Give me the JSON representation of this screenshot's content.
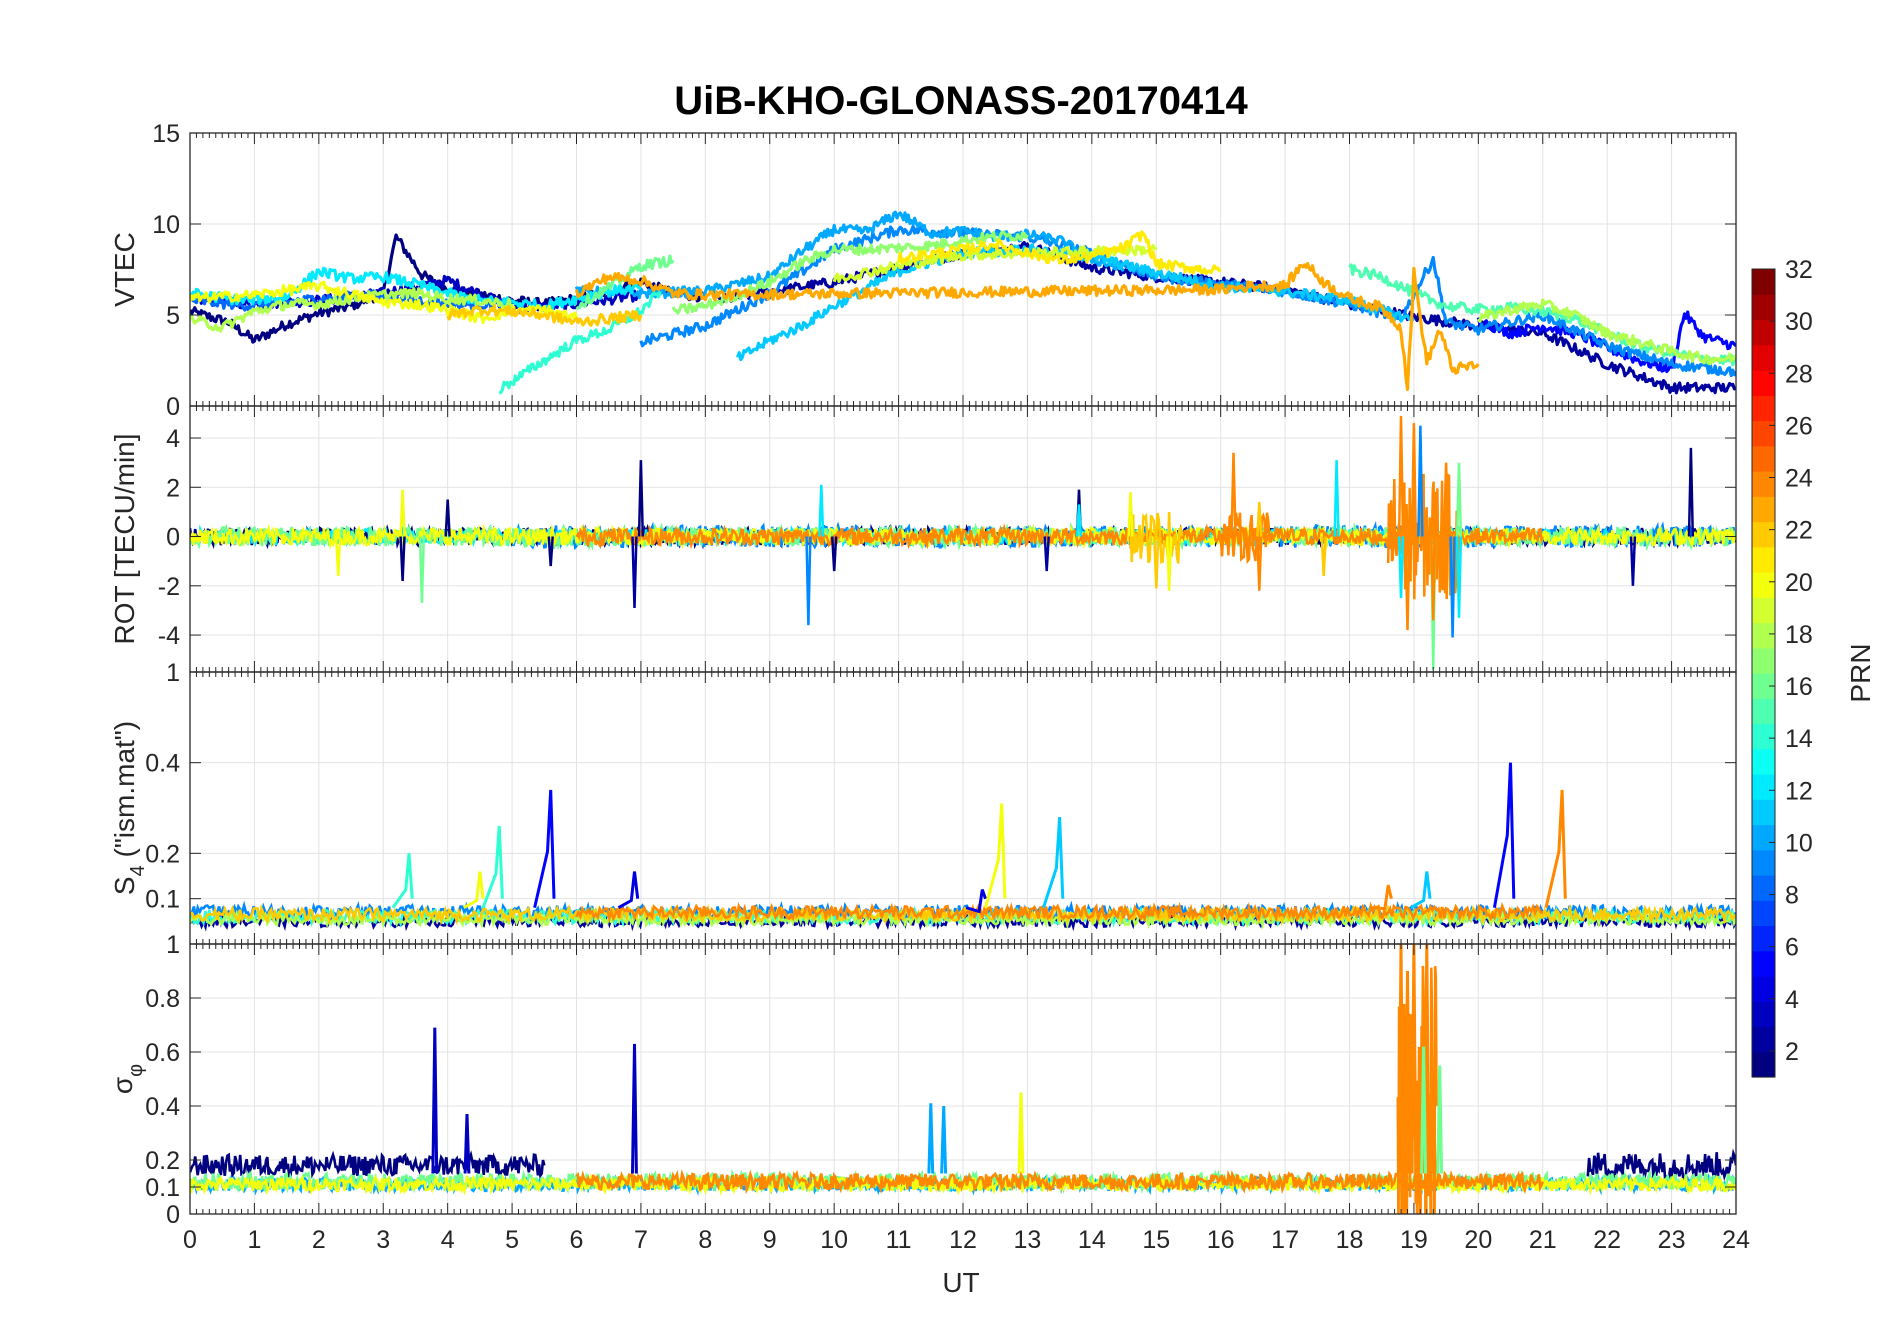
{
  "chart_data": {
    "type": "line",
    "title": "UiB-KHO-GLONASS-20170414",
    "xlabel": "UT",
    "xlim": [
      0,
      24
    ],
    "x_ticks": [
      "0",
      "1",
      "2",
      "3",
      "4",
      "5",
      "6",
      "7",
      "8",
      "9",
      "10",
      "11",
      "12",
      "13",
      "14",
      "15",
      "16",
      "17",
      "18",
      "19",
      "20",
      "21",
      "22",
      "23",
      "24"
    ],
    "colorbar": {
      "label": "PRN",
      "range": [
        1,
        32
      ],
      "ticks": [
        "2",
        "4",
        "6",
        "8",
        "10",
        "12",
        "14",
        "16",
        "18",
        "20",
        "22",
        "24",
        "26",
        "28",
        "30",
        "32"
      ],
      "colormap": "jet"
    },
    "panels": [
      {
        "key": "vtec",
        "ylabel": "VTEC",
        "ylim": [
          0,
          15
        ],
        "y_ticks": [
          "0",
          "5",
          "10",
          "15"
        ],
        "series": [
          {
            "prn": 1,
            "x": [
              0,
              0.6,
              1,
              1.5,
              2,
              2.5,
              3,
              3.2,
              3.6,
              4,
              4.5,
              5,
              5.5,
              6,
              6.5,
              7,
              7.5,
              8
            ],
            "y": [
              5.2,
              4.6,
              3.6,
              4.5,
              5.1,
              5.5,
              6.2,
              9.3,
              7.2,
              6.4,
              6.1,
              5.8,
              5.6,
              5.9,
              6.3,
              6.8,
              6.2,
              6.0
            ]
          },
          {
            "prn": 3,
            "x": [
              0,
              1,
              2,
              3,
              4,
              5,
              6,
              7
            ],
            "y": [
              5.9,
              5.6,
              5.8,
              6.2,
              6.9,
              5.4,
              5.6,
              6.1
            ]
          },
          {
            "prn": 2,
            "x": [
              8.2,
              9,
              10,
              11,
              12,
              13,
              14,
              15,
              16,
              17,
              18,
              19,
              20,
              21,
              22,
              23,
              24
            ],
            "y": [
              5.8,
              6.3,
              6.8,
              7.6,
              8.4,
              8.8,
              7.6,
              7.1,
              6.8,
              6.4,
              5.6,
              4.9,
              4.4,
              4.0,
              2.3,
              1.0,
              1.0
            ]
          },
          {
            "prn": 5,
            "x": [
              20,
              20.5,
              21,
              21.5,
              22,
              22.5,
              23,
              23.2,
              23.5,
              24
            ],
            "y": [
              4.7,
              4.0,
              4.4,
              4.0,
              3.2,
              2.5,
              2.0,
              5.1,
              3.8,
              3.3
            ]
          },
          {
            "prn": 8,
            "x": [
              0,
              1,
              2,
              3,
              4,
              5
            ],
            "y": [
              5.8,
              5.5,
              5.9,
              6.1,
              5.6,
              5.6
            ]
          },
          {
            "prn": 9,
            "x": [
              7,
              8,
              9,
              10,
              11,
              12,
              13,
              14,
              15,
              16,
              17,
              18,
              18.8,
              19.3,
              19.5,
              20,
              21,
              22,
              23,
              24
            ],
            "y": [
              3.5,
              4.4,
              6.2,
              8.6,
              9.7,
              9.5,
              9.3,
              8.4,
              7.1,
              6.7,
              6.3,
              5.6,
              4.8,
              8.1,
              4.6,
              4.2,
              5.0,
              3.3,
              2.3,
              1.9
            ]
          },
          {
            "prn": 10,
            "x": [
              6,
              7,
              8,
              9,
              9.5,
              10,
              10.5,
              11,
              11.5,
              12,
              12.5,
              13,
              13.5,
              14,
              14.5
            ],
            "y": [
              6.3,
              6.2,
              6.3,
              7.1,
              8.5,
              9.7,
              9.6,
              10.6,
              9.5,
              9.6,
              9.3,
              9.4,
              9.1,
              8.1,
              7.5
            ]
          },
          {
            "prn": 12,
            "x": [
              0,
              0.8,
              1.5,
              2,
              2.5,
              3,
              3.5,
              4,
              4.5,
              5,
              5.5,
              6,
              6.5,
              7
            ],
            "y": [
              6.2,
              5.8,
              6.0,
              7.4,
              7.0,
              7.1,
              6.7,
              6.2,
              5.8,
              5.7,
              5.5,
              5.9,
              6.3,
              6.5
            ]
          },
          {
            "prn": 11,
            "x": [
              8.5,
              9,
              9.5,
              10,
              11,
              12,
              13,
              14,
              15,
              16,
              17,
              18,
              19
            ],
            "y": [
              2.6,
              3.6,
              4.4,
              5.5,
              7.4,
              8.4,
              8.6,
              8.2,
              7.3,
              6.6,
              6.3,
              5.8,
              4.7
            ]
          },
          {
            "prn": 14,
            "x": [
              4.8,
              5.5,
              6,
              6.5,
              7,
              7.3
            ],
            "y": [
              0.9,
              2.5,
              3.6,
              4.2,
              5.2,
              6.3
            ]
          },
          {
            "prn": 15,
            "x": [
              18,
              18.5,
              19,
              19.5,
              20,
              20.5,
              21,
              21.5,
              22,
              22.5,
              23,
              23.5,
              24
            ],
            "y": [
              7.5,
              7.1,
              6.2,
              5.5,
              5.3,
              5.4,
              5.2,
              4.8,
              4.0,
              3.3,
              2.9,
              2.6,
              2.5
            ]
          },
          {
            "prn": 17,
            "x": [
              7.5,
              8,
              8.5,
              9,
              9.5,
              10,
              10.5,
              11,
              11.5,
              12,
              12.5,
              13
            ],
            "y": [
              5.2,
              5.5,
              6.1,
              6.8,
              7.9,
              8.6,
              8.6,
              8.7,
              8.8,
              9.1,
              9.3,
              9.4
            ]
          },
          {
            "prn": 16,
            "x": [
              6,
              6.5,
              7,
              7.3,
              7.5
            ],
            "y": [
              5.5,
              6.5,
              7.7,
              7.9,
              8.0
            ]
          },
          {
            "prn": 18,
            "x": [
              0,
              0.5,
              1,
              1.5,
              2,
              2.5,
              3,
              3.5,
              4,
              4.5,
              5
            ],
            "y": [
              4.8,
              4.3,
              5.2,
              5.6,
              5.6,
              5.9,
              6.1,
              6.2,
              5.9,
              5.8,
              5.6
            ]
          },
          {
            "prn": 18,
            "x": [
              20,
              20.5,
              21,
              21.5,
              22,
              22.5,
              23,
              23.5,
              24
            ],
            "y": [
              4.8,
              5.3,
              5.6,
              5.0,
              4.0,
              3.5,
              3.0,
              2.6,
              2.6
            ]
          },
          {
            "prn": 19,
            "x": [
              10,
              11,
              12,
              13,
              14,
              15
            ],
            "y": [
              7.0,
              7.7,
              8.3,
              8.4,
              8.5,
              8.6
            ]
          },
          {
            "prn": 20,
            "x": [
              0,
              1,
              2,
              3,
              3.5,
              4,
              4.5,
              5,
              5.5,
              6
            ],
            "y": [
              5.9,
              6.1,
              6.6,
              5.7,
              5.6,
              5.3,
              4.8,
              5.2,
              5.3,
              4.8
            ]
          },
          {
            "prn": 21,
            "x": [
              11,
              12,
              12.5,
              13,
              13.5,
              14,
              14.5,
              14.8,
              15,
              15.5,
              16
            ],
            "y": [
              8.1,
              8.6,
              8.9,
              8.4,
              8.0,
              8.2,
              8.7,
              9.5,
              7.8,
              7.6,
              7.4
            ]
          },
          {
            "prn": 22,
            "x": [
              4,
              4.5,
              5,
              5.5,
              6,
              6.5,
              7
            ],
            "y": [
              5.0,
              5.3,
              5.2,
              5.0,
              4.6,
              4.8,
              5.0
            ]
          },
          {
            "prn": 23,
            "x": [
              6,
              6.5,
              7,
              7.5,
              8,
              16,
              16.5,
              17,
              17.3,
              17.6,
              18,
              18.5,
              18.8,
              18.9,
              19,
              19.2,
              19.4,
              19.6,
              20
            ],
            "y": [
              6.2,
              7.1,
              6.9,
              6.2,
              6.1,
              6.4,
              6.6,
              6.6,
              7.9,
              6.8,
              5.9,
              5.4,
              4.3,
              1.0,
              7.3,
              2.4,
              4.2,
              2.0,
              2.3
            ]
          }
        ]
      },
      {
        "key": "rot",
        "ylabel": "ROT [TECU/min]",
        "ylim": [
          -5.5,
          5.3
        ],
        "y_ticks": [
          "-4",
          "-2",
          "0",
          "2",
          "4"
        ],
        "series_note": "noise",
        "spikes": [
          {
            "prn": 1,
            "x": [
              3.3,
              4.0,
              5.6,
              7.0,
              10.0,
              13.8,
              23.3
            ],
            "y": [
              -1.8,
              1.5,
              -1.2,
              3.1,
              -1.4,
              1.9,
              3.6
            ]
          },
          {
            "prn": 2,
            "x": [
              6.9,
              13.3,
              22.4
            ],
            "y": [
              -2.9,
              -1.4,
              -2.0
            ]
          },
          {
            "prn": 9,
            "x": [
              9.6,
              19.1,
              19.6
            ],
            "y": [
              -3.6,
              4.5,
              -4.1
            ]
          },
          {
            "prn": 12,
            "x": [
              9.8,
              13.8,
              17.8,
              18.8,
              19.7
            ],
            "y": [
              2.1,
              1.3,
              3.1,
              -2.5,
              -3.3
            ]
          },
          {
            "prn": 16,
            "x": [
              3.6,
              19.3,
              19.7
            ],
            "y": [
              -2.7,
              -5.4,
              3.0
            ]
          },
          {
            "prn": 20,
            "x": [
              2.3,
              3.3,
              14.6,
              15.2
            ],
            "y": [
              -1.6,
              1.9,
              1.8,
              -2.2
            ]
          },
          {
            "prn": 22,
            "x": [
              15.0,
              16.6,
              17.6
            ],
            "y": [
              -2.1,
              1.4,
              -1.6
            ]
          },
          {
            "prn": 24,
            "x": [
              16.2,
              16.6,
              18.8,
              18.9,
              19.0,
              19.3,
              19.5
            ],
            "y": [
              3.4,
              -2.2,
              4.9,
              -3.8,
              4.6,
              -3.4,
              3.0
            ]
          }
        ]
      },
      {
        "key": "s4",
        "ylabel": "S4 (\"ism.mat\")",
        "ylabel_main": "S",
        "ylabel_sub": "4",
        "ylabel_rest": " (\"ism.mat\")",
        "ylim": [
          0,
          0.6
        ],
        "y_ticks": [
          "0.1",
          "0.2",
          "0.4"
        ],
        "top_tick": "1",
        "spikes": [
          {
            "prn": 5,
            "x": [
              5.6,
              20.5
            ],
            "y": [
              0.34,
              0.4
            ]
          },
          {
            "prn": 4,
            "x": [
              6.9,
              12.3
            ],
            "y": [
              0.16,
              0.12
            ]
          },
          {
            "prn": 11,
            "x": [
              13.5,
              19.2
            ],
            "y": [
              0.28,
              0.16
            ]
          },
          {
            "prn": 14,
            "x": [
              4.8,
              3.4
            ],
            "y": [
              0.26,
              0.2
            ]
          },
          {
            "prn": 20,
            "x": [
              12.6,
              4.5
            ],
            "y": [
              0.31,
              0.16
            ]
          },
          {
            "prn": 24,
            "x": [
              21.3,
              18.6
            ],
            "y": [
              0.34,
              0.13
            ]
          }
        ]
      },
      {
        "key": "sigphi",
        "ylabel": "σφ",
        "ylabel_main": "σ",
        "ylabel_sub": "φ",
        "ylim": [
          0,
          1
        ],
        "y_ticks": [
          "0",
          "0.1",
          "0.2",
          "0.4",
          "0.6",
          "0.8",
          "1"
        ],
        "spikes": [
          {
            "prn": 3,
            "x": [
              3.8,
              6.9,
              4.3
            ],
            "y": [
              0.69,
              0.63,
              0.37
            ]
          },
          {
            "prn": 10,
            "x": [
              11.5,
              11.7
            ],
            "y": [
              0.41,
              0.4
            ]
          },
          {
            "prn": 20,
            "x": [
              12.9
            ],
            "y": [
              0.45
            ]
          },
          {
            "prn": 24,
            "x": [
              18.8,
              18.9,
              19.0,
              19.1,
              19.2,
              19.3
            ],
            "y": [
              1.0,
              0.9,
              1.0,
              0.6,
              1.0,
              0.5
            ]
          },
          {
            "prn": 16,
            "x": [
              19.15,
              19.4
            ],
            "y": [
              0.62,
              0.55
            ]
          }
        ]
      }
    ]
  }
}
